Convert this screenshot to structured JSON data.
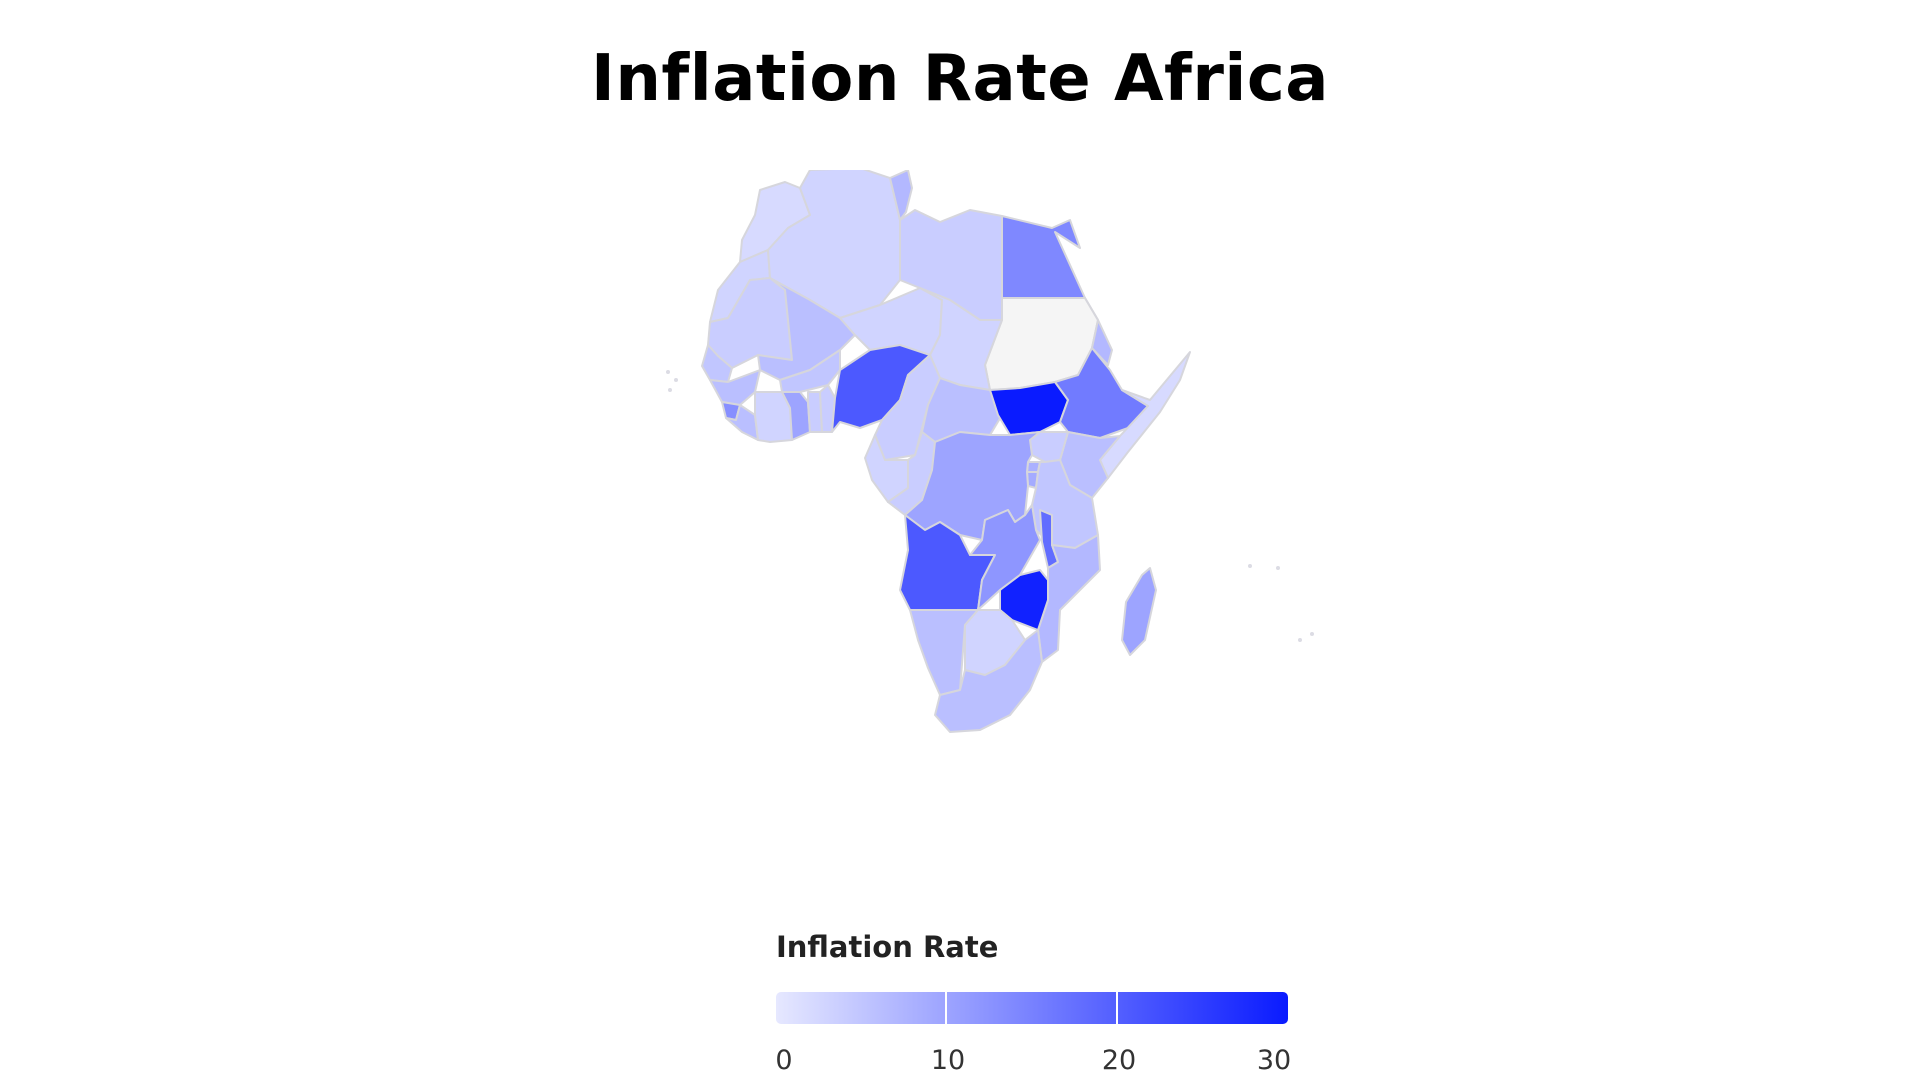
{
  "title": "Inflation Rate Africa",
  "chart_data": {
    "type": "choropleth",
    "title": "Inflation Rate Africa",
    "region": "Africa",
    "legend": {
      "title": "Inflation Rate",
      "ticks": [
        "0",
        "10",
        "20",
        "30"
      ],
      "range": [
        0,
        30
      ],
      "color_low": "#e6e8ff",
      "color_high": "#0a1bff"
    },
    "no_data_color": "#f5f5f5",
    "regions": [
      {
        "name": "Morocco",
        "value": 2
      },
      {
        "name": "Western Sahara",
        "value": 3
      },
      {
        "name": "Algeria",
        "value": 3
      },
      {
        "name": "Tunisia",
        "value": 7
      },
      {
        "name": "Libya",
        "value": 4
      },
      {
        "name": "Egypt",
        "value": 14
      },
      {
        "name": "Sudan",
        "value": null
      },
      {
        "name": "Mauritania",
        "value": 4
      },
      {
        "name": "Mali",
        "value": 6
      },
      {
        "name": "Niger",
        "value": 3
      },
      {
        "name": "Chad",
        "value": 3
      },
      {
        "name": "Senegal",
        "value": 5
      },
      {
        "name": "Burkina Faso",
        "value": 5
      },
      {
        "name": "Guinea",
        "value": 6
      },
      {
        "name": "Sierra Leone",
        "value": 13
      },
      {
        "name": "Liberia",
        "value": 6
      },
      {
        "name": "Cote d'Ivoire",
        "value": 3
      },
      {
        "name": "Ghana",
        "value": 10
      },
      {
        "name": "Togo",
        "value": 4
      },
      {
        "name": "Benin",
        "value": 4
      },
      {
        "name": "Nigeria",
        "value": 21
      },
      {
        "name": "Cameroon",
        "value": 4
      },
      {
        "name": "Central African Republic",
        "value": 6
      },
      {
        "name": "South Sudan",
        "value": 30
      },
      {
        "name": "Ethiopia",
        "value": 16
      },
      {
        "name": "Eritrea",
        "value": 7
      },
      {
        "name": "Somalia",
        "value": 2
      },
      {
        "name": "Kenya",
        "value": 6
      },
      {
        "name": "Uganda",
        "value": 4
      },
      {
        "name": "Rwanda",
        "value": 8
      },
      {
        "name": "Burundi",
        "value": 9
      },
      {
        "name": "Gabon",
        "value": 3
      },
      {
        "name": "Congo",
        "value": 4
      },
      {
        "name": "Democratic Republic of the Congo",
        "value": 10
      },
      {
        "name": "Tanzania",
        "value": 5
      },
      {
        "name": "Angola",
        "value": 21
      },
      {
        "name": "Zambia",
        "value": 12
      },
      {
        "name": "Malawi",
        "value": 18
      },
      {
        "name": "Mozambique",
        "value": 7
      },
      {
        "name": "Zimbabwe",
        "value": 29
      },
      {
        "name": "Namibia",
        "value": 6
      },
      {
        "name": "Botswana",
        "value": 3
      },
      {
        "name": "South Africa",
        "value": 6
      },
      {
        "name": "Madagascar",
        "value": 10
      }
    ]
  }
}
